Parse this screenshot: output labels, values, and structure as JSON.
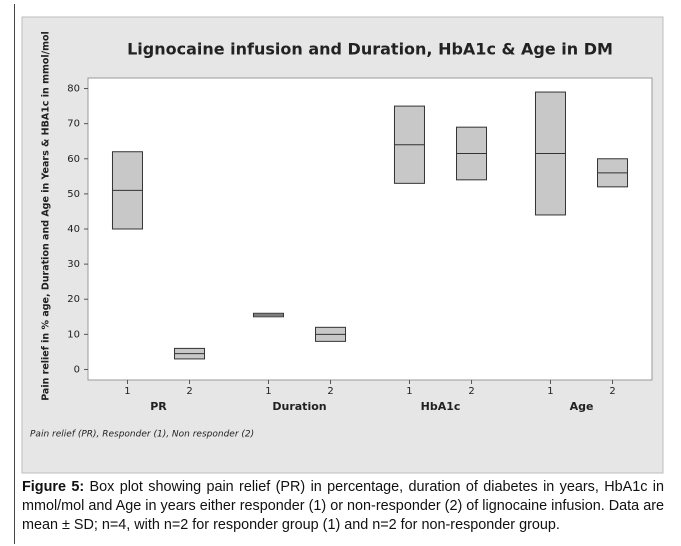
{
  "chart_data": {
    "type": "box",
    "title": "Lignocaine infusion and Duration, HbA1c & Age in DM",
    "y_label": "Pain relief in % age, Duration and Age in Years & HBA1c in mmol/mol",
    "groups": [
      "PR",
      "Duration",
      "HbA1c",
      "Age"
    ],
    "categories": [
      "1",
      "2",
      "1",
      "2",
      "1",
      "2",
      "1",
      "2"
    ],
    "low": [
      40,
      3,
      15,
      8,
      53,
      54,
      44,
      52
    ],
    "median": [
      51,
      4.5,
      15.5,
      10,
      64,
      61.5,
      61.5,
      56
    ],
    "high": [
      62,
      6,
      16,
      12,
      75,
      69,
      79,
      60
    ],
    "color": "#c8c8c8",
    "ylim": [
      -3,
      83
    ],
    "yticks": [
      0,
      10,
      20,
      30,
      40,
      50,
      60,
      70,
      80
    ],
    "grid": false,
    "note": "Pain relief (PR), Responder (1), Non responder (2)"
  },
  "caption": {
    "label": "Figure 5:",
    "text": "Box plot showing pain relief (PR) in percentage, duration of diabetes in years, HbA1c in mmol/mol and Age in years either responder (1) or non-responder (2) of lignocaine infusion. Data are mean ± SD; n=4, with n=2 for responder group (1) and n=2 for non-responder group."
  }
}
